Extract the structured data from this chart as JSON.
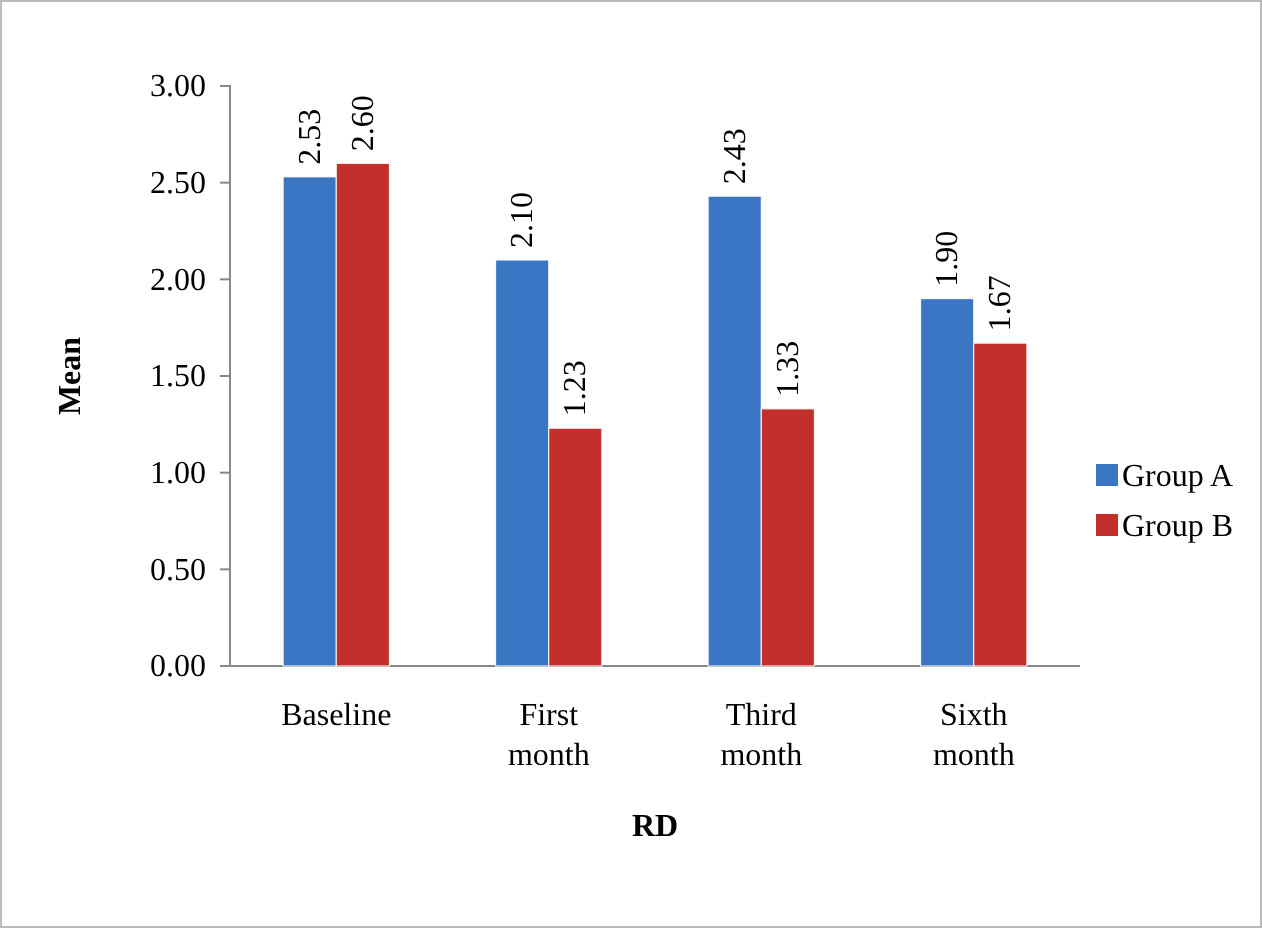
{
  "chart_data": {
    "type": "bar",
    "xlabel": "RD",
    "ylabel": "Mean",
    "categories": [
      "Baseline",
      "First month",
      "Third month",
      "Sixth month"
    ],
    "series": [
      {
        "name": "Group A",
        "color": "#3a76c4",
        "values": [
          2.53,
          2.1,
          2.43,
          1.9
        ],
        "value_labels": [
          "2.53",
          "2.10",
          "2.43",
          "1.90"
        ]
      },
      {
        "name": "Group B",
        "color": "#c3302c",
        "values": [
          2.6,
          1.23,
          1.33,
          1.67
        ],
        "value_labels": [
          "2.60",
          "1.23",
          "1.33",
          "1.67"
        ]
      }
    ],
    "ylim": [
      0,
      3
    ],
    "yticks": [
      {
        "value": 0,
        "label": "0.00"
      },
      {
        "value": 0.5,
        "label": "0.50"
      },
      {
        "value": 1,
        "label": "1.00"
      },
      {
        "value": 1.5,
        "label": "1.50"
      },
      {
        "value": 2,
        "label": "2.00"
      },
      {
        "value": 2.5,
        "label": "2.50"
      },
      {
        "value": 3,
        "label": "3.00"
      }
    ],
    "legend": "right",
    "grid": false
  }
}
